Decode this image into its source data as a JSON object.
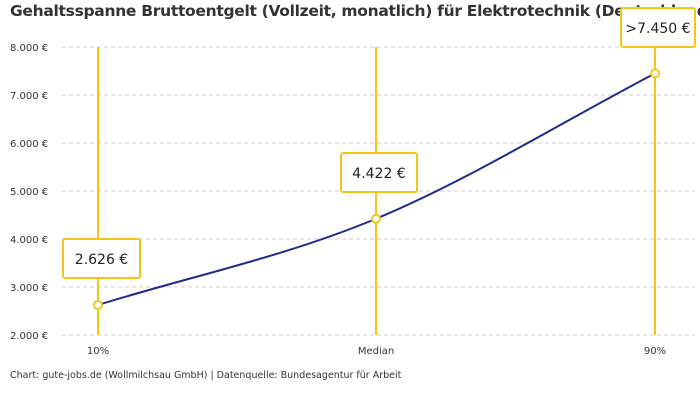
{
  "chart_data": {
    "type": "line",
    "title": "Gehaltsspanne Bruttoentgelt (Vollzeit, monatlich) für Elektrotechnik (Deutschland)",
    "categories": [
      "10%",
      "Median",
      "90%"
    ],
    "values": [
      2626,
      4422,
      7450
    ],
    "data_labels": [
      "2.626 €",
      "4.422 €",
      ">7.450 €"
    ],
    "ylim": [
      2000,
      8000
    ],
    "yticks": [
      "2.000 €",
      "3.000 €",
      "4.000 €",
      "5.000 €",
      "6.000 €",
      "7.000 €",
      "8.000 €"
    ],
    "ytick_values": [
      2000,
      3000,
      4000,
      5000,
      6000,
      7000,
      8000
    ],
    "grid": true,
    "colors": {
      "line": "#1f2b8c",
      "marker": "#f5c518"
    }
  },
  "footer": "Chart: gute-jobs.de (Wollmilchsau GmbH) | Datenquelle: Bundesagentur für Arbeit"
}
